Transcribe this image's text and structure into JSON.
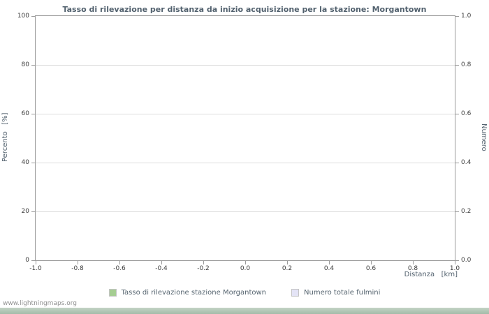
{
  "chart_data": {
    "type": "line",
    "title": "Tasso di rilevazione per distanza da inizio acquisizione per la stazione: Morgantown",
    "xlabel": "Distanza   [km]",
    "ylabel_left": "Percento   [%]",
    "ylabel_right": "Numero",
    "x_ticks": [
      "-1.0",
      "-0.8",
      "-0.6",
      "-0.4",
      "-0.2",
      "0.0",
      "0.2",
      "0.4",
      "0.6",
      "0.8",
      "1.0"
    ],
    "y_left_ticks": [
      "0",
      "20",
      "40",
      "60",
      "80",
      "100"
    ],
    "y_right_ticks": [
      "0.0",
      "0.2",
      "0.4",
      "0.6",
      "0.8",
      "1.0"
    ],
    "xlim": [
      -1.0,
      1.0
    ],
    "ylim_left": [
      0,
      100
    ],
    "ylim_right": [
      0.0,
      1.0
    ],
    "grid": "horizontal",
    "legend_position": "bottom-center",
    "series": [
      {
        "name": "Tasso di rilevazione stazione Morgantown",
        "color": "#a5cd92",
        "values": []
      },
      {
        "name": "Numero totale fulmini",
        "color": "#e4e4f6",
        "values": []
      }
    ]
  },
  "footer": {
    "watermark": "www.lightningmaps.org"
  },
  "colors": {
    "footer_bar_top": "#c3d3c4",
    "footer_bar_bottom": "#a4bca9",
    "title_text": "#52616e"
  }
}
